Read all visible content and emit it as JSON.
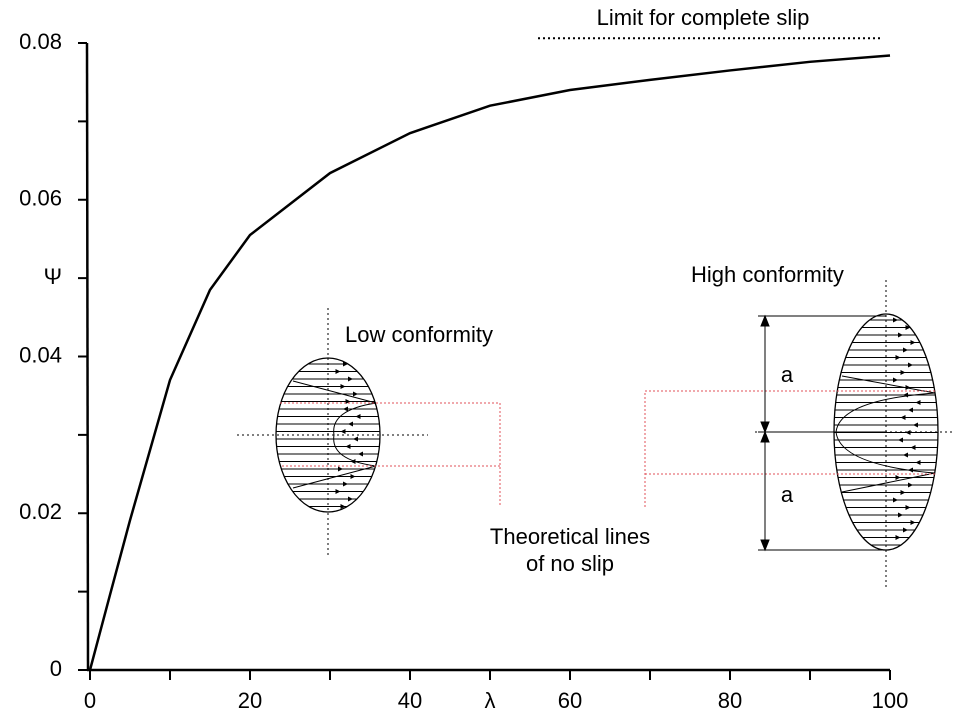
{
  "chart_data": {
    "type": "line",
    "x": [
      0,
      2.5,
      5,
      10,
      15,
      20,
      30,
      40,
      50,
      60,
      70,
      80,
      90,
      100
    ],
    "series": [
      {
        "color": "#000000",
        "values": [
          0,
          0.0096,
          0.0191,
          0.037,
          0.0485,
          0.0555,
          0.0634,
          0.0685,
          0.072,
          0.074,
          0.0753,
          0.0765,
          0.0776,
          0.0784
        ]
      }
    ],
    "xlim": [
      0,
      100
    ],
    "ylim": [
      0,
      0.08
    ],
    "xticks": [
      0,
      20,
      40,
      {
        "value": 50,
        "label": "λ"
      },
      60,
      80,
      100
    ],
    "yticks": [
      0,
      0.02,
      0.04,
      {
        "value": 0.05,
        "label": "Ψ"
      },
      0.06,
      0.08
    ],
    "minor_xticks": [
      10,
      30,
      70,
      90
    ],
    "minor_yticks": [
      0.01,
      0.03,
      0.07
    ],
    "limit": {
      "label": "Limit for complete slip",
      "value": 0.0806,
      "x": [
        56,
        99
      ]
    },
    "annotations": [
      "Low conformity",
      "High conformity",
      "a",
      "a",
      "Theoretical lines",
      "of no slip"
    ]
  }
}
